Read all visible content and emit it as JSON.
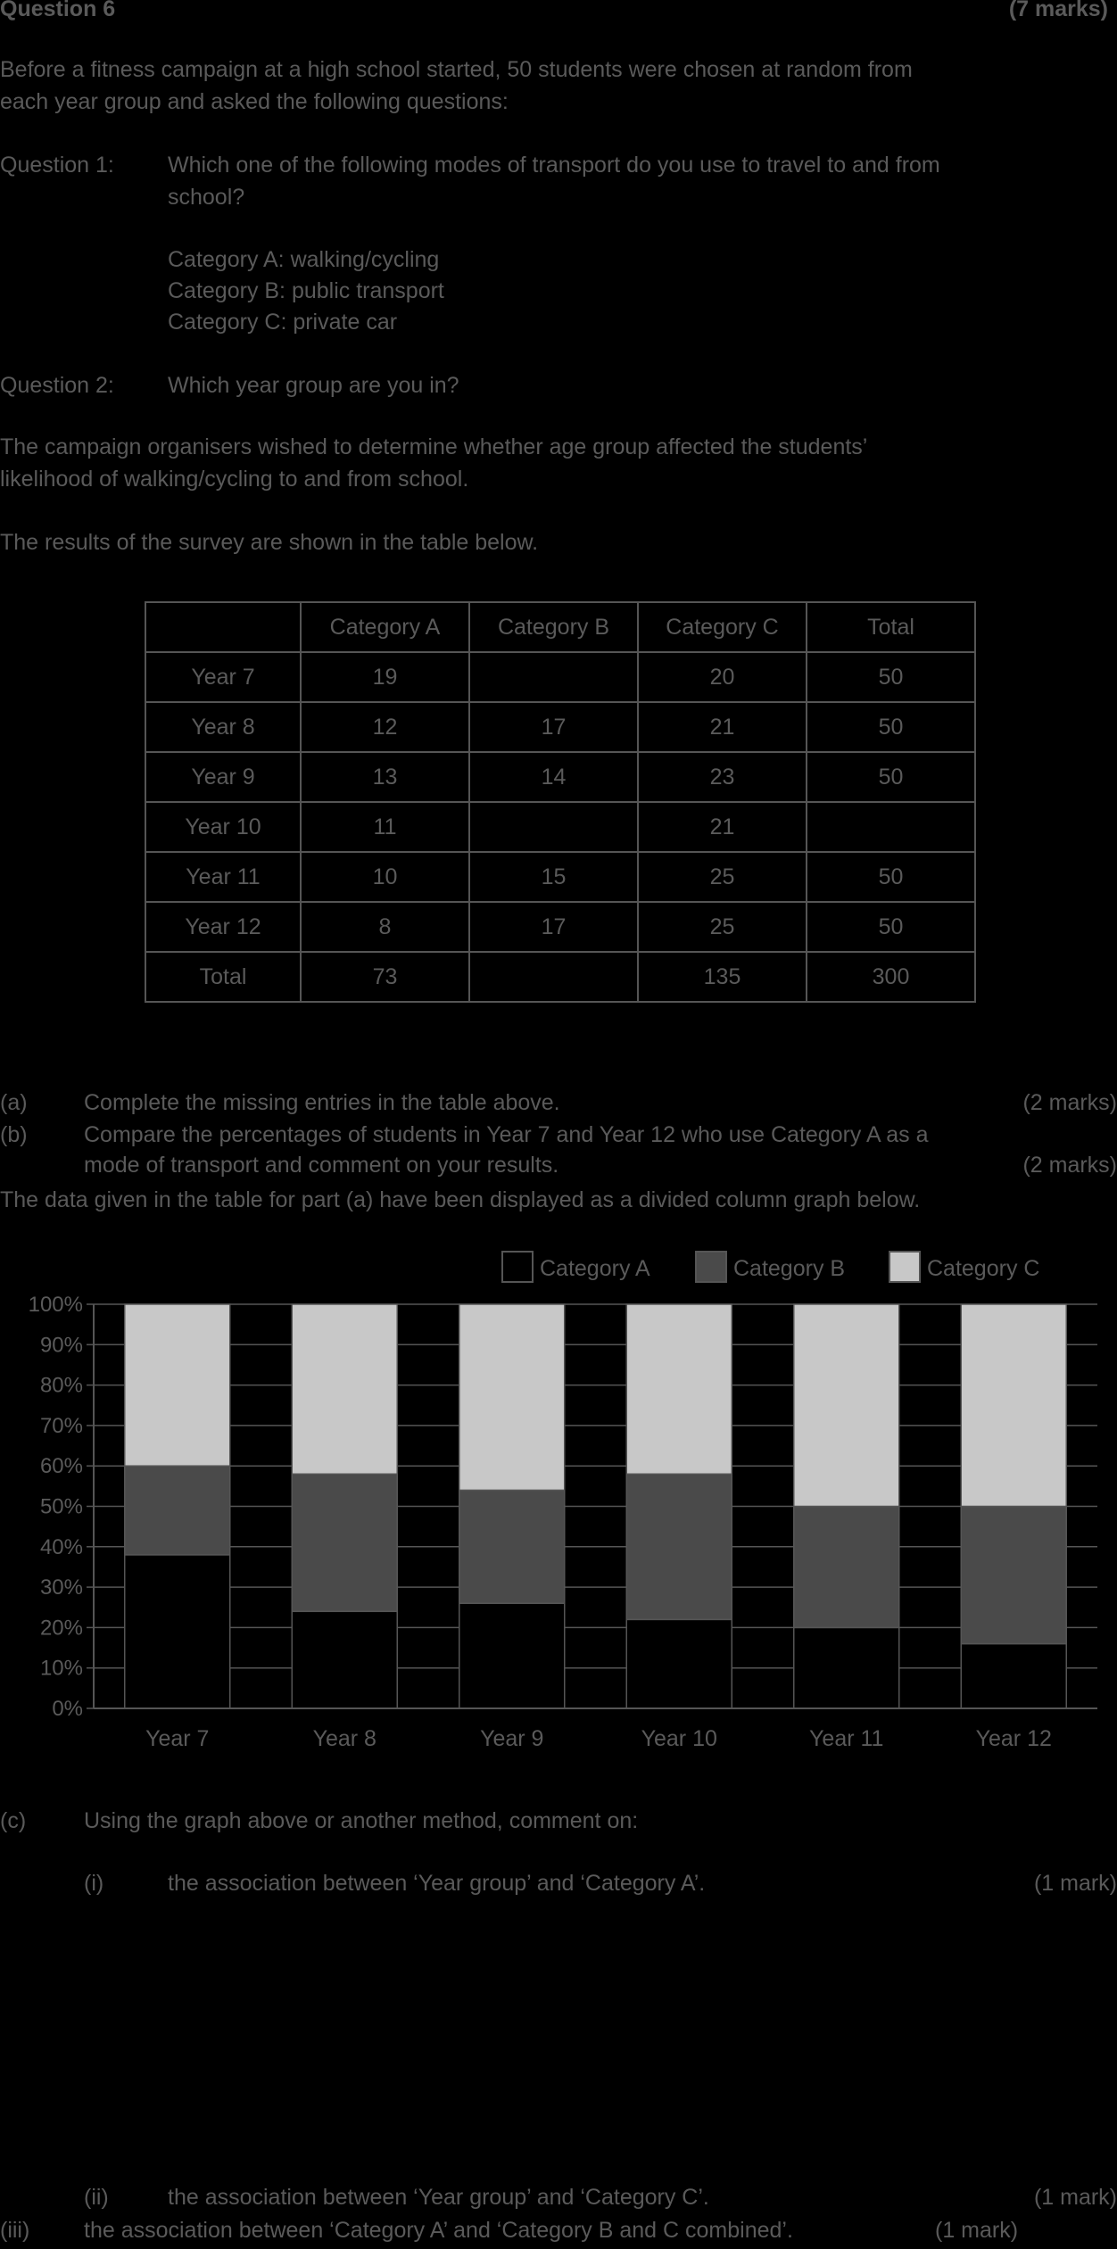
{
  "header": {
    "title": "Question 6",
    "marks": "(7 marks)"
  },
  "intro": [
    "Before a fitness campaign at a high school started, 50 students were chosen at random from",
    "each year group and asked the following questions:"
  ],
  "q1": {
    "label": "Question 1:",
    "text": [
      "Which one of the following modes of transport do you use to travel to and from",
      "school?"
    ],
    "categories": [
      "Category A: walking/cycling",
      "Category B: public transport",
      "Category C: private car"
    ]
  },
  "q2": {
    "label": "Question 2:",
    "text": "Which year group are you in?"
  },
  "purpose": [
    "The campaign organisers wished to determine whether age group affected the students’",
    "likelihood of walking/cycling to and from school."
  ],
  "results_text": "The results of the survey are shown in the table below.",
  "table": {
    "headers": [
      "",
      "Category A",
      "Category B",
      "Category C",
      "Total"
    ],
    "rows": [
      [
        "Year 7",
        "19",
        "",
        "20",
        "50"
      ],
      [
        "Year 8",
        "12",
        "17",
        "21",
        "50"
      ],
      [
        "Year 9",
        "13",
        "14",
        "23",
        "50"
      ],
      [
        "Year 10",
        "11",
        "",
        "21",
        ""
      ],
      [
        "Year 11",
        "10",
        "15",
        "25",
        "50"
      ],
      [
        "Year 12",
        "8",
        "17",
        "25",
        "50"
      ],
      [
        "Total",
        "73",
        "",
        "135",
        "300"
      ]
    ]
  },
  "part_a": {
    "label": "(a)",
    "text": "Complete the missing entries in the table above.",
    "marks": "(2 marks)"
  },
  "part_b": {
    "label": "(b)",
    "text": [
      "Compare the percentages of students in Year 7 and Year 12 who use Category A as a",
      "mode of transport and comment on your results."
    ],
    "marks": "(2 marks)"
  },
  "graph_intro": "The data given in the table for part (a) have been displayed as a divided column graph below.",
  "chart_data": {
    "type": "bar",
    "stacked": true,
    "categories": [
      "Year 7",
      "Year 8",
      "Year 9",
      "Year 10",
      "Year 11",
      "Year 12"
    ],
    "series": [
      {
        "name": "Category A",
        "values": [
          38,
          24,
          26,
          22,
          20,
          16
        ],
        "color": "#000000"
      },
      {
        "name": "Category B",
        "values": [
          22,
          34,
          28,
          36,
          30,
          34
        ],
        "color": "#4a4a4a"
      },
      {
        "name": "Category C",
        "values": [
          40,
          42,
          46,
          42,
          50,
          50
        ],
        "color": "#c8c8c8"
      }
    ],
    "yticks": [
      "0%",
      "10%",
      "20%",
      "30%",
      "40%",
      "50%",
      "60%",
      "70%",
      "80%",
      "90%",
      "100%"
    ],
    "ylim": [
      0,
      100
    ],
    "grid": true,
    "legend": "top-right"
  },
  "part_c": {
    "label": "(c)",
    "text": "Using the graph above or another method, comment on:",
    "i": {
      "label": "(i)",
      "text": "the association between ‘Year group’ and ‘Category A’.",
      "marks": "(1 mark)"
    },
    "ii": {
      "label": "(ii)",
      "text": "the association between ‘Year group’ and ‘Category C’.",
      "marks": "(1 mark)"
    },
    "iii": {
      "label": "(iii)",
      "text": "the association between ‘Category A’ and ‘Category B and C combined’.",
      "marks": "(1 mark)"
    }
  }
}
